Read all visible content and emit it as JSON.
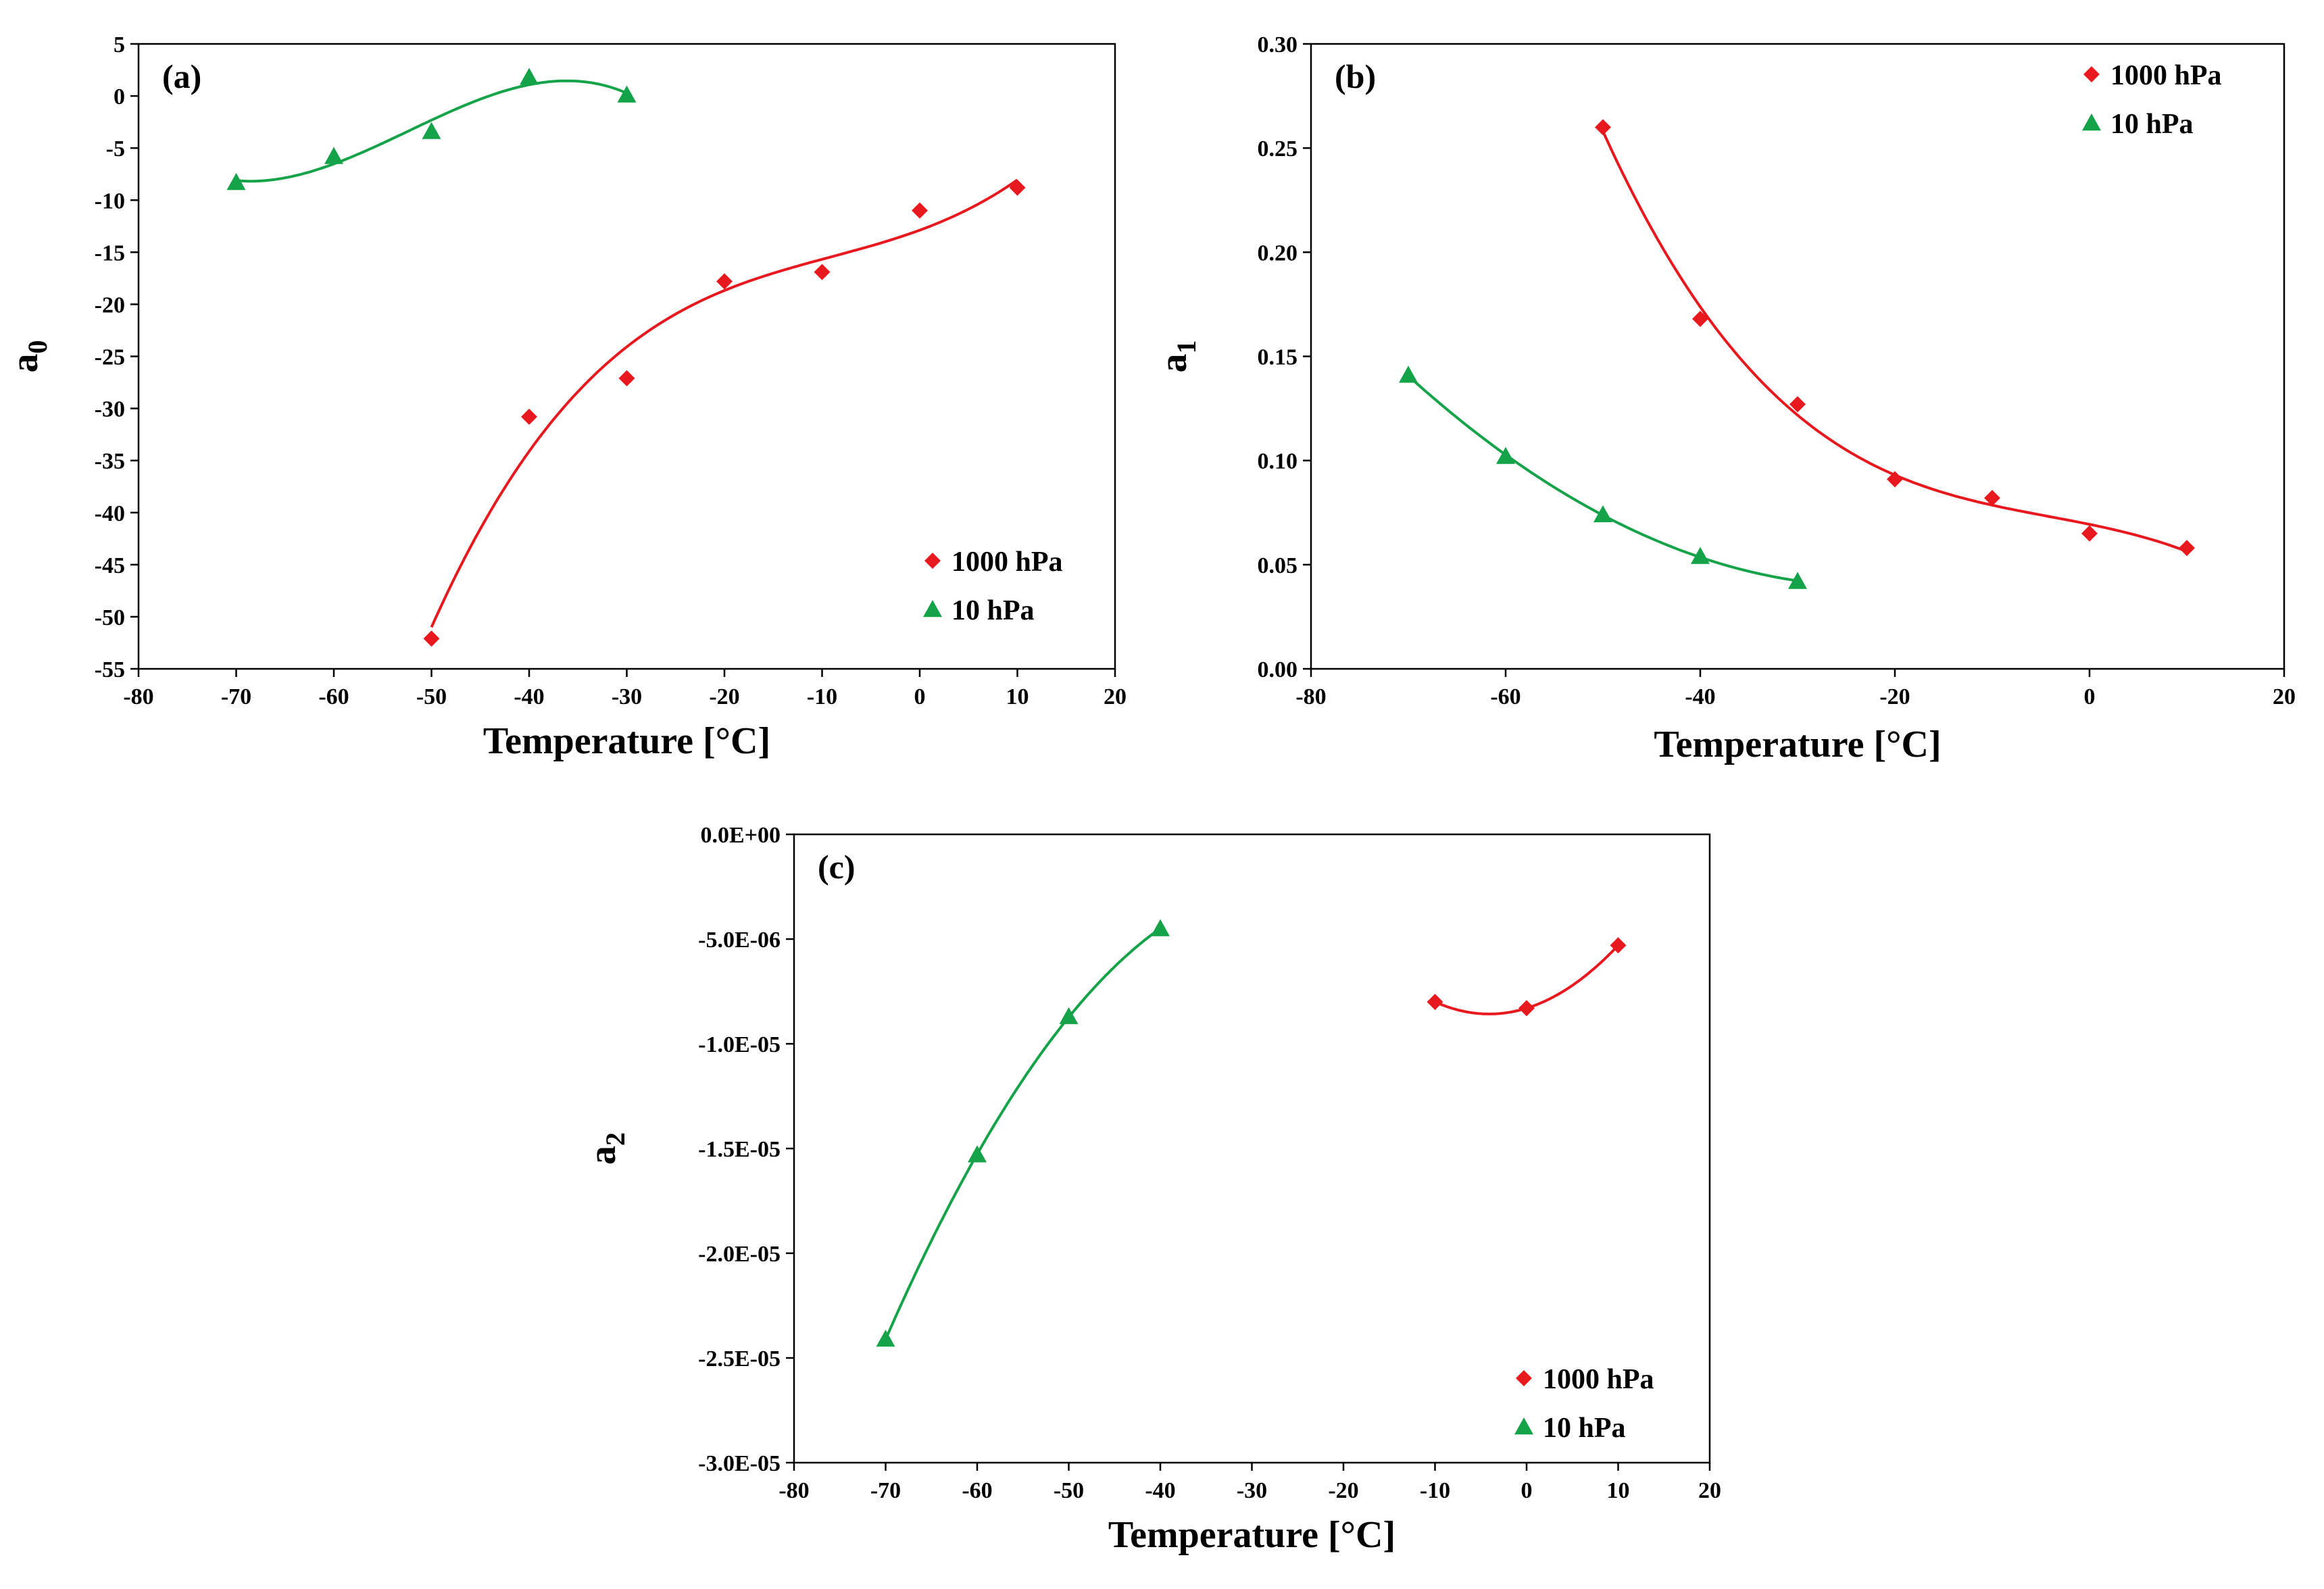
{
  "chart_data": [
    {
      "type": "scatter",
      "panel_label": "(a)",
      "xlabel": "Temperature [°C]",
      "ylabel": "a",
      "ylabel_sub": "0",
      "xlim": [
        -80,
        20
      ],
      "ylim": [
        -55,
        5
      ],
      "xticks": [
        "-80",
        "-70",
        "-60",
        "-50",
        "-40",
        "-30",
        "-20",
        "-10",
        "0",
        "10",
        "20"
      ],
      "yticks": [
        "5",
        "0",
        "-5",
        "-10",
        "-15",
        "-20",
        "-25",
        "-30",
        "-35",
        "-40",
        "-45",
        "-50",
        "-55"
      ],
      "legend_position": "bottom-right",
      "series": [
        {
          "name": "1000 hPa",
          "color": "#e8191e",
          "marker": "diamond",
          "x": [
            -50,
            -40,
            -30,
            -20,
            -10,
            0,
            10
          ],
          "y": [
            -52.1,
            -30.8,
            -27.1,
            -17.8,
            -16.9,
            -11.0,
            -8.8
          ],
          "fit_degree": 3
        },
        {
          "name": "10 hPa",
          "color": "#15a349",
          "marker": "triangle",
          "x": [
            -70,
            -60,
            -50,
            -40,
            -30
          ],
          "y": [
            -8.3,
            -5.8,
            -3.4,
            1.8,
            0.1
          ],
          "fit_degree": 3
        }
      ]
    },
    {
      "type": "scatter",
      "panel_label": "(b)",
      "xlabel": "Temperature [°C]",
      "ylabel": "a",
      "ylabel_sub": "1",
      "xlim": [
        -80,
        20
      ],
      "ylim": [
        0,
        0.3
      ],
      "xticks": [
        "-80",
        "-60",
        "-40",
        "-20",
        "0",
        "20"
      ],
      "yticks": [
        "0.30",
        "0.25",
        "0.20",
        "0.15",
        "0.10",
        "0.05",
        "0.00"
      ],
      "legend_position": "top-right",
      "series": [
        {
          "name": "1000 hPa",
          "color": "#e8191e",
          "marker": "diamond",
          "x": [
            -50,
            -40,
            -30,
            -20,
            -10,
            0,
            10
          ],
          "y": [
            0.26,
            0.168,
            0.127,
            0.091,
            0.082,
            0.065,
            0.058
          ],
          "fit_degree": 3
        },
        {
          "name": "10 hPa",
          "color": "#15a349",
          "marker": "triangle",
          "x": [
            -70,
            -60,
            -50,
            -40,
            -30
          ],
          "y": [
            0.141,
            0.102,
            0.074,
            0.054,
            0.042
          ],
          "fit_degree": 2
        }
      ]
    },
    {
      "type": "scatter",
      "panel_label": "(c)",
      "xlabel": "Temperature [°C]",
      "ylabel": "a",
      "ylabel_sub": "2",
      "xlim": [
        -80,
        20
      ],
      "ylim": [
        -3e-05,
        0
      ],
      "xticks": [
        "-80",
        "-70",
        "-60",
        "-50",
        "-40",
        "-30",
        "-20",
        "-10",
        "0",
        "10",
        "20"
      ],
      "yticks": [
        "0.0E+00",
        "-5.0E-06",
        "-1.0E-05",
        "-1.5E-05",
        "-2.0E-05",
        "-2.5E-05",
        "-3.0E-05"
      ],
      "legend_position": "bottom-right",
      "series": [
        {
          "name": "1000 hPa",
          "color": "#e8191e",
          "marker": "diamond",
          "x": [
            -10,
            0,
            10
          ],
          "y": [
            -8e-06,
            -8.3e-06,
            -5.3e-06
          ],
          "fit_degree": 2
        },
        {
          "name": "10 hPa",
          "color": "#15a349",
          "marker": "triangle",
          "x": [
            -70,
            -60,
            -50,
            -40
          ],
          "y": [
            -2.41e-05,
            -1.53e-05,
            -8.7e-06,
            -4.5e-06
          ],
          "fit_degree": 2
        }
      ]
    }
  ]
}
